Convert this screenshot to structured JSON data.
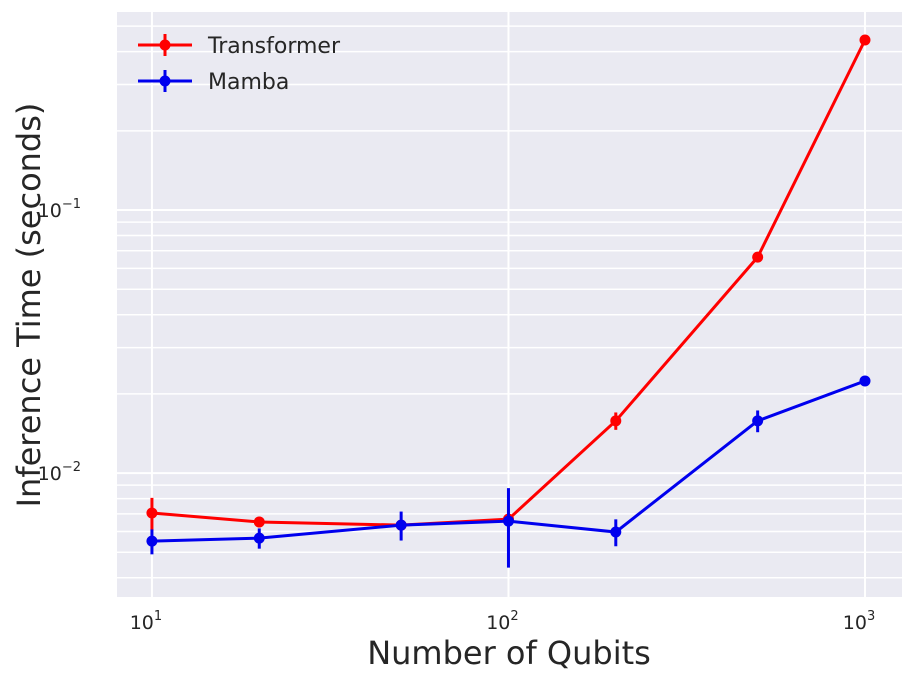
{
  "chart_data": {
    "type": "line",
    "xlabel": "Number of Qubits",
    "ylabel": "Inference Time (seconds)",
    "xscale": "log",
    "yscale": "log",
    "xlim": [
      7.98,
      1270
    ],
    "ylim": [
      0.00338,
      0.566
    ],
    "xticks": [
      {
        "value": 10,
        "label": "10",
        "exponent": "1"
      },
      {
        "value": 100,
        "label": "10",
        "exponent": "2"
      },
      {
        "value": 1000,
        "label": "10",
        "exponent": "3"
      }
    ],
    "yticks": [
      {
        "value": 0.01,
        "label": "10",
        "exponent": "−2"
      },
      {
        "value": 0.1,
        "label": "10",
        "exponent": "−1"
      }
    ],
    "yminor": [
      0.004,
      0.005,
      0.006,
      0.007,
      0.008,
      0.009,
      0.02,
      0.03,
      0.04,
      0.05,
      0.06,
      0.07,
      0.08,
      0.09,
      0.2,
      0.3,
      0.4,
      0.5
    ],
    "grid": true,
    "legend": "upper left",
    "x": [
      10,
      20,
      50,
      100,
      200,
      500,
      1000
    ],
    "series": [
      {
        "name": "Transformer",
        "color": "#ff0000",
        "values": [
          0.00705,
          0.00652,
          0.00634,
          0.00668,
          0.0158,
          0.0662,
          0.443
        ],
        "errors": [
          0.001,
          0.0003,
          0.0002,
          0.0002,
          0.0012,
          0.001,
          0.005
        ]
      },
      {
        "name": "Mamba",
        "color": "#0000ee",
        "values": [
          0.00551,
          0.00566,
          0.00634,
          0.00657,
          0.00597,
          0.0158,
          0.0224
        ],
        "errors": [
          0.0006,
          0.0005,
          0.0008,
          0.0022,
          0.0007,
          0.0015,
          0.0005
        ]
      }
    ]
  }
}
